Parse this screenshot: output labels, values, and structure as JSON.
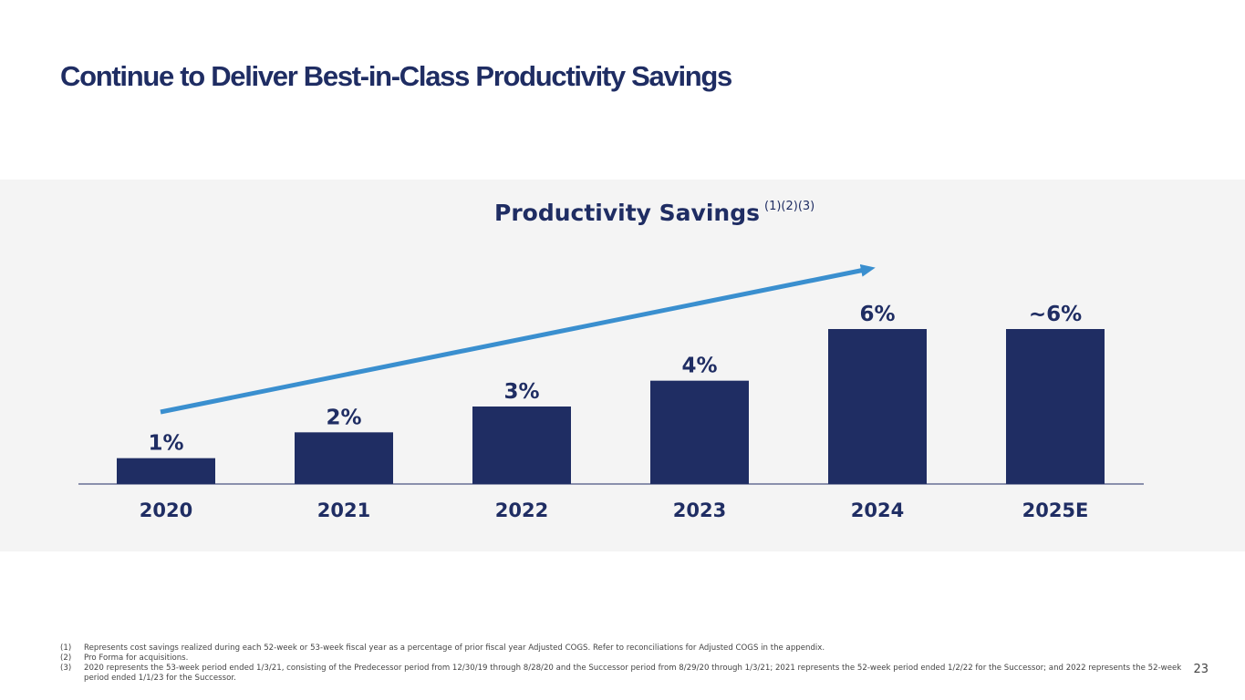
{
  "page": {
    "title": "Continue to Deliver Best-in-Class Productivity Savings",
    "page_number": "23"
  },
  "colors": {
    "bar": "#1f2d63",
    "arrow": "#3a8fcf",
    "panel_background": "#f4f4f4",
    "title": "#1f2d63"
  },
  "chart_data": {
    "type": "bar",
    "title": "Productivity Savings",
    "title_superscript": "(1)(2)(3)",
    "categories": [
      "2020",
      "2021",
      "2022",
      "2023",
      "2024",
      "2025E"
    ],
    "values": [
      1,
      2,
      3,
      4,
      6,
      6
    ],
    "data_labels": [
      "1%",
      "2%",
      "3%",
      "4%",
      "6%",
      "~6%"
    ],
    "xlabel": "",
    "ylabel": "",
    "ylim": [
      0,
      6
    ],
    "grid": false,
    "legend": "none",
    "trend_arrow": true
  },
  "footnotes": [
    {
      "num": "(1)",
      "text": "Represents cost savings realized during each 52-week or 53-week fiscal year as a percentage of prior fiscal year Adjusted COGS. Refer to reconciliations for Adjusted COGS in the appendix."
    },
    {
      "num": "(2)",
      "text": "Pro Forma for acquisitions."
    },
    {
      "num": "(3)",
      "text": "2020 represents the 53-week period ended 1/3/21, consisting of the Predecessor period from 12/30/19 through 8/28/20 and the Successor period from 8/29/20 through 1/3/21; 2021 represents the 52-week period ended 1/2/22 for the Successor; and 2022 represents the 52-week period ended 1/1/23 for the Successor."
    }
  ]
}
